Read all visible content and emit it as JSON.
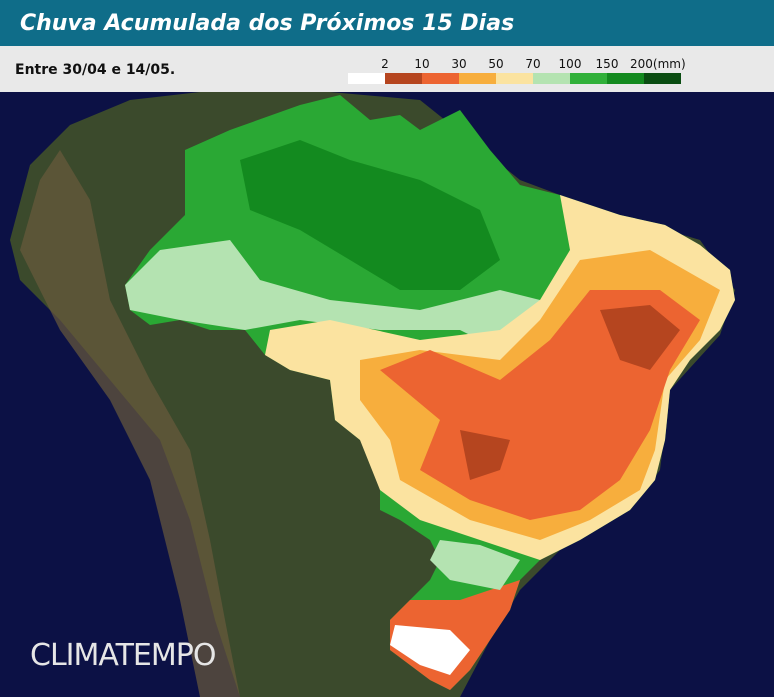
{
  "header": {
    "title": "Chuva Acumulada dos Próximos 15 Dias",
    "subtitle": "Entre 30/04 e 14/05."
  },
  "legend": {
    "labels": [
      "2",
      "10",
      "30",
      "50",
      "70",
      "100",
      "150",
      "200(mm)"
    ],
    "colors": [
      "#ffffff",
      "#b5451f",
      "#ec6431",
      "#f7ae3d",
      "#fbe3a0",
      "#b4e3b1",
      "#31b03a",
      "#148a1f",
      "#0b4d12"
    ]
  },
  "logo": "CLIMATEMPO"
}
